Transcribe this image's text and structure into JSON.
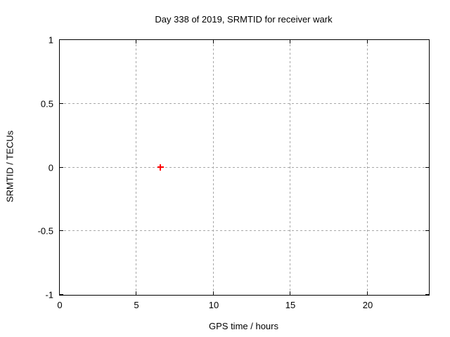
{
  "chart_data": {
    "type": "scatter",
    "title": "Day 338 of 2019, SRMTID for receiver wark",
    "xlabel": "GPS time / hours",
    "ylabel": "SRMTID / TECUs",
    "xlim": [
      0,
      24
    ],
    "ylim": [
      -1,
      1
    ],
    "xticks": [
      0,
      5,
      10,
      15,
      20
    ],
    "xtick_labels": [
      "0",
      "5",
      "10",
      "15",
      "20"
    ],
    "yticks": [
      -1,
      -0.5,
      0,
      0.5,
      1
    ],
    "ytick_labels": [
      "-1",
      "-0.5",
      "0",
      "0.5",
      "1"
    ],
    "grid": true,
    "legend": "none",
    "series": [
      {
        "marker": "plus",
        "color": "#ff0000",
        "points": [
          [
            6.6,
            0.0
          ]
        ]
      }
    ],
    "colors": {
      "axis": "#000000",
      "grid": "#a8a8a8",
      "background": "#ffffff"
    }
  }
}
